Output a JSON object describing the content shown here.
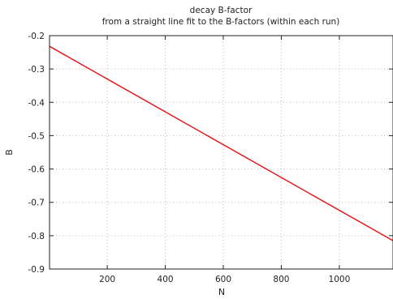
{
  "chart_data": {
    "type": "line",
    "title": "decay B-factor",
    "subtitle": "from a straight line fit to the B-factors (within each run)",
    "xlabel": "N",
    "ylabel": "B",
    "xlim": [
      1,
      1185
    ],
    "ylim": [
      -0.9,
      -0.2
    ],
    "xticks": [
      200,
      400,
      600,
      800,
      1000
    ],
    "yticks": [
      -0.9,
      -0.8,
      -0.7,
      -0.6,
      -0.5,
      -0.4,
      -0.3,
      -0.2
    ],
    "grid": true,
    "series": [
      {
        "color": "#e31a1c",
        "x": [
          1,
          1185
        ],
        "y": [
          -0.232,
          -0.815
        ]
      }
    ]
  }
}
